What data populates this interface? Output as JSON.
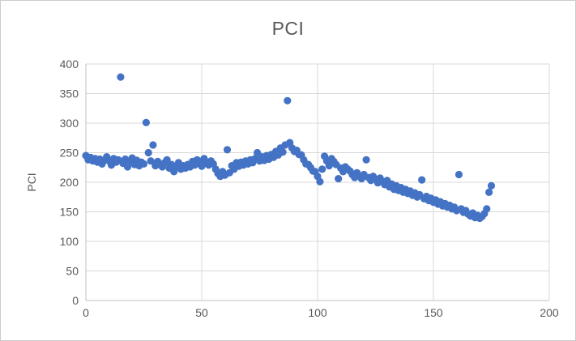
{
  "chart_data": {
    "type": "scatter",
    "title": "PCI",
    "xlabel": "",
    "ylabel": "PCI",
    "xlim": [
      0,
      200
    ],
    "ylim": [
      0,
      400
    ],
    "x_ticks": [
      0,
      50,
      100,
      150,
      200
    ],
    "y_ticks": [
      0,
      50,
      100,
      150,
      200,
      250,
      300,
      350,
      400
    ],
    "grid": true,
    "legend": false,
    "marker_color": "#4472C4",
    "gridline_color": "#D9D9D9",
    "axis_color": "#BFBFBF",
    "label_color": "#595959",
    "points": [
      [
        0,
        245
      ],
      [
        1,
        238
      ],
      [
        2,
        242
      ],
      [
        3,
        236
      ],
      [
        4,
        240
      ],
      [
        5,
        234
      ],
      [
        6,
        239
      ],
      [
        7,
        231
      ],
      [
        8,
        237
      ],
      [
        9,
        243
      ],
      [
        10,
        236
      ],
      [
        11,
        229
      ],
      [
        12,
        240
      ],
      [
        13,
        234
      ],
      [
        14,
        238
      ],
      [
        15,
        378
      ],
      [
        16,
        232
      ],
      [
        17,
        239
      ],
      [
        18,
        226
      ],
      [
        19,
        235
      ],
      [
        20,
        241
      ],
      [
        21,
        230
      ],
      [
        22,
        237
      ],
      [
        23,
        228
      ],
      [
        24,
        234
      ],
      [
        25,
        231
      ],
      [
        26,
        301
      ],
      [
        27,
        250
      ],
      [
        28,
        236
      ],
      [
        29,
        263
      ],
      [
        30,
        228
      ],
      [
        31,
        235
      ],
      [
        32,
        230
      ],
      [
        33,
        226
      ],
      [
        34,
        233
      ],
      [
        35,
        238
      ],
      [
        36,
        224
      ],
      [
        37,
        230
      ],
      [
        38,
        218
      ],
      [
        39,
        227
      ],
      [
        40,
        233
      ],
      [
        41,
        222
      ],
      [
        42,
        228
      ],
      [
        43,
        224
      ],
      [
        44,
        230
      ],
      [
        45,
        226
      ],
      [
        46,
        235
      ],
      [
        47,
        229
      ],
      [
        48,
        238
      ],
      [
        49,
        232
      ],
      [
        50,
        227
      ],
      [
        51,
        240
      ],
      [
        52,
        234
      ],
      [
        53,
        229
      ],
      [
        54,
        236
      ],
      [
        55,
        231
      ],
      [
        56,
        222
      ],
      [
        57,
        215
      ],
      [
        58,
        210
      ],
      [
        59,
        218
      ],
      [
        60,
        212
      ],
      [
        61,
        255
      ],
      [
        62,
        216
      ],
      [
        63,
        228
      ],
      [
        64,
        222
      ],
      [
        65,
        233
      ],
      [
        66,
        227
      ],
      [
        67,
        234
      ],
      [
        68,
        229
      ],
      [
        69,
        236
      ],
      [
        70,
        231
      ],
      [
        71,
        238
      ],
      [
        72,
        233
      ],
      [
        73,
        240
      ],
      [
        74,
        250
      ],
      [
        75,
        236
      ],
      [
        76,
        243
      ],
      [
        77,
        237
      ],
      [
        78,
        245
      ],
      [
        79,
        239
      ],
      [
        80,
        247
      ],
      [
        81,
        242
      ],
      [
        82,
        252
      ],
      [
        83,
        246
      ],
      [
        84,
        258
      ],
      [
        85,
        251
      ],
      [
        86,
        263
      ],
      [
        87,
        338
      ],
      [
        88,
        267
      ],
      [
        89,
        258
      ],
      [
        90,
        252
      ],
      [
        91,
        254
      ],
      [
        92,
        247
      ],
      [
        93,
        246
      ],
      [
        94,
        238
      ],
      [
        95,
        231
      ],
      [
        96,
        230
      ],
      [
        97,
        225
      ],
      [
        98,
        219
      ],
      [
        99,
        218
      ],
      [
        100,
        210
      ],
      [
        101,
        201
      ],
      [
        102,
        222
      ],
      [
        103,
        244
      ],
      [
        104,
        236
      ],
      [
        105,
        228
      ],
      [
        106,
        240
      ],
      [
        107,
        235
      ],
      [
        108,
        230
      ],
      [
        109,
        206
      ],
      [
        110,
        224
      ],
      [
        111,
        218
      ],
      [
        112,
        226
      ],
      [
        113,
        222
      ],
      [
        114,
        219
      ],
      [
        115,
        213
      ],
      [
        116,
        208
      ],
      [
        117,
        216
      ],
      [
        118,
        211
      ],
      [
        119,
        206
      ],
      [
        120,
        213
      ],
      [
        121,
        238
      ],
      [
        122,
        208
      ],
      [
        123,
        203
      ],
      [
        124,
        210
      ],
      [
        125,
        205
      ],
      [
        126,
        199
      ],
      [
        127,
        207
      ],
      [
        128,
        201
      ],
      [
        129,
        196
      ],
      [
        130,
        203
      ],
      [
        131,
        192
      ],
      [
        132,
        197
      ],
      [
        133,
        188
      ],
      [
        134,
        194
      ],
      [
        135,
        186
      ],
      [
        136,
        191
      ],
      [
        137,
        183
      ],
      [
        138,
        188
      ],
      [
        139,
        181
      ],
      [
        140,
        185
      ],
      [
        141,
        178
      ],
      [
        142,
        182
      ],
      [
        143,
        175
      ],
      [
        144,
        179
      ],
      [
        145,
        204
      ],
      [
        146,
        172
      ],
      [
        147,
        176
      ],
      [
        148,
        169
      ],
      [
        149,
        173
      ],
      [
        150,
        166
      ],
      [
        151,
        170
      ],
      [
        152,
        163
      ],
      [
        153,
        167
      ],
      [
        154,
        160
      ],
      [
        155,
        164
      ],
      [
        156,
        158
      ],
      [
        157,
        161
      ],
      [
        158,
        155
      ],
      [
        159,
        158
      ],
      [
        160,
        152
      ],
      [
        161,
        213
      ],
      [
        162,
        155
      ],
      [
        163,
        149
      ],
      [
        164,
        152
      ],
      [
        165,
        146
      ],
      [
        166,
        143
      ],
      [
        167,
        148
      ],
      [
        168,
        140
      ],
      [
        169,
        144
      ],
      [
        170,
        139
      ],
      [
        171,
        142
      ],
      [
        172,
        147
      ],
      [
        173,
        155
      ],
      [
        174,
        183
      ],
      [
        175,
        194
      ]
    ]
  }
}
